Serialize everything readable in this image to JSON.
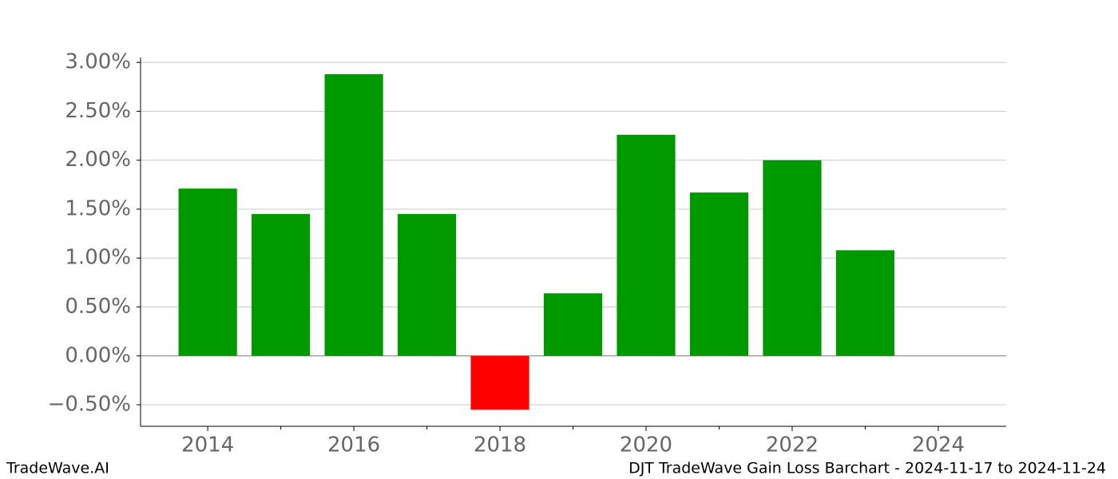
{
  "chart_data": {
    "type": "bar",
    "x": [
      2014,
      2015,
      2016,
      2017,
      2018,
      2019,
      2020,
      2021,
      2022,
      2023
    ],
    "values": [
      1.71,
      1.45,
      2.88,
      1.45,
      -0.55,
      0.64,
      2.26,
      1.67,
      2.0,
      1.08
    ],
    "positive_color": "#009900",
    "negative_color": "#ff0000",
    "xlim": [
      2013.08,
      2024.93
    ],
    "xticks": [
      2014,
      2016,
      2018,
      2020,
      2022,
      2024
    ],
    "xminor_ticks": [
      2015,
      2017,
      2019,
      2021,
      2023
    ],
    "ylim": [
      -0.72,
      3.05
    ],
    "yticks": [
      {
        "value": -0.5,
        "label": "−0.50%"
      },
      {
        "value": 0,
        "label": "0.00%"
      },
      {
        "value": 0.5,
        "label": "0.50%"
      },
      {
        "value": 1,
        "label": "1.00%"
      },
      {
        "value": 1.5,
        "label": "1.50%"
      },
      {
        "value": 2,
        "label": "2.00%"
      },
      {
        "value": 2.5,
        "label": "2.50%"
      },
      {
        "value": 3,
        "label": "3.00%"
      }
    ],
    "grid": true,
    "footer_left": "TradeWave.AI",
    "footer_right": "DJT TradeWave Gain Loss Barchart - 2024-11-17 to 2024-11-24"
  }
}
